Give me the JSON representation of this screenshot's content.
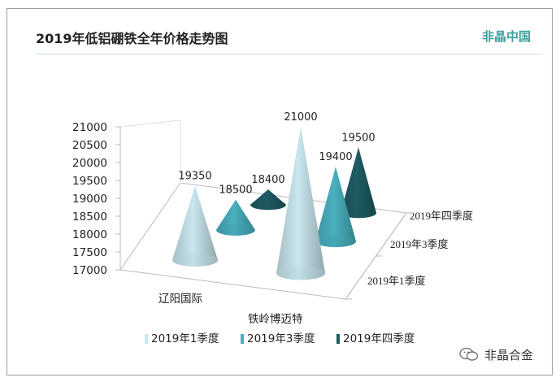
{
  "header": {
    "title": "2019年低铝硼铁全年价格走势图",
    "brand": "非晶中国"
  },
  "footer": {
    "logo_icon": "wechat-icon",
    "text": "非晶合金"
  },
  "chart_data": {
    "type": "bar",
    "shape": "cone-3d",
    "categories": [
      "辽阳国际",
      "铁岭博迈特"
    ],
    "series": [
      {
        "name": "2019年1季度",
        "values": [
          19350,
          21000
        ],
        "color": "#c9e6ee"
      },
      {
        "name": "2019年3季度",
        "values": [
          18500,
          19400
        ],
        "color": "#4ab0bf"
      },
      {
        "name": "2019年四季度",
        "values": [
          18400,
          19500
        ],
        "color": "#1f5c63"
      }
    ],
    "y_ticks": [
      "17000",
      "17500",
      "18000",
      "18500",
      "19000",
      "19500",
      "20000",
      "20500",
      "21000"
    ],
    "depth_labels": [
      "2019年1季度",
      "2019年3季度",
      "2019年四季度"
    ],
    "ylim": [
      17000,
      21000
    ],
    "legend": "bottom"
  }
}
